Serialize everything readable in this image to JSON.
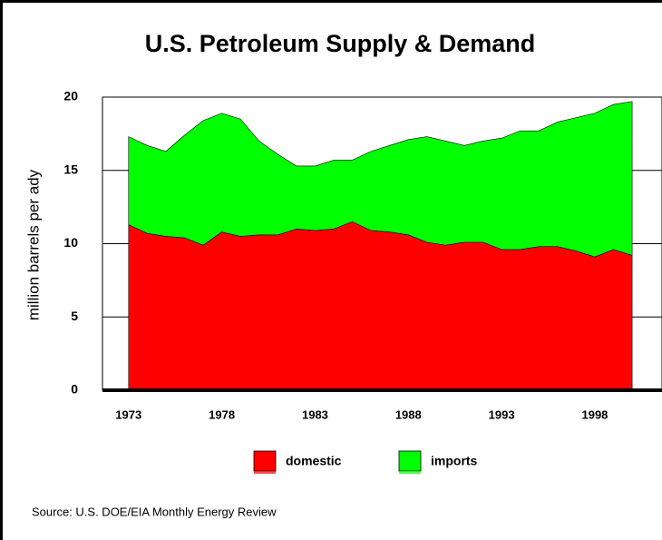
{
  "chart_data": {
    "type": "stacked_area",
    "title": "U.S. Petroleum Supply & Demand",
    "y_label": "million barrels per ady",
    "source": "Source: U.S. DOE/EIA Monthly Energy Review",
    "x": [
      1973,
      1974,
      1975,
      1976,
      1977,
      1978,
      1979,
      1980,
      1981,
      1982,
      1983,
      1984,
      1985,
      1986,
      1987,
      1988,
      1989,
      1990,
      1991,
      1992,
      1993,
      1994,
      1995,
      1996,
      1997,
      1998,
      1999,
      2000
    ],
    "series": [
      {
        "name": "domestic",
        "color": "#ff0000",
        "values": [
          11.3,
          10.7,
          10.5,
          10.4,
          9.9,
          10.8,
          10.5,
          10.6,
          10.6,
          11.0,
          10.9,
          11.0,
          11.5,
          10.9,
          10.8,
          10.6,
          10.1,
          9.9,
          10.1,
          10.1,
          9.6,
          9.6,
          9.8,
          9.8,
          9.5,
          9.1,
          9.6,
          9.2
        ]
      },
      {
        "name": "imports",
        "color": "#00ff00",
        "values": [
          6.0,
          6.0,
          5.8,
          7.0,
          8.5,
          8.1,
          8.0,
          6.4,
          5.5,
          4.3,
          4.4,
          4.7,
          4.2,
          5.4,
          5.9,
          6.5,
          7.2,
          7.1,
          6.6,
          6.9,
          7.6,
          8.1,
          7.9,
          8.5,
          9.1,
          9.8,
          9.9,
          10.5
        ]
      }
    ],
    "xlim": [
      1971.6,
      2001.6
    ],
    "xticks": [
      1973,
      1978,
      1983,
      1988,
      1993,
      1998
    ],
    "ylim": [
      0,
      20
    ],
    "yticks": [
      0,
      5,
      10,
      15,
      20
    ],
    "grid": true
  }
}
